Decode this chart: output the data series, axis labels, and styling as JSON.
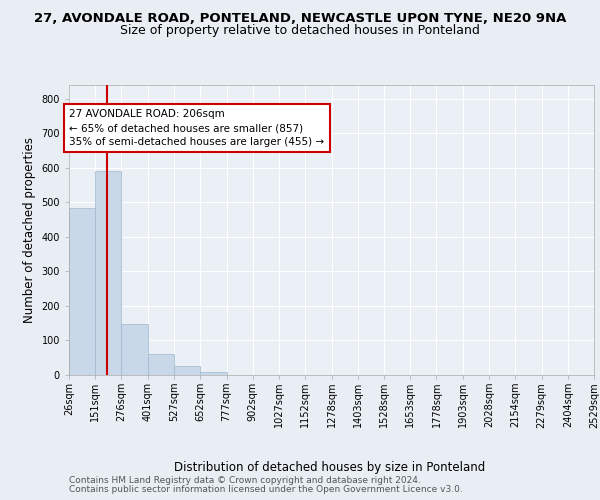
{
  "title_line1": "27, AVONDALE ROAD, PONTELAND, NEWCASTLE UPON TYNE, NE20 9NA",
  "title_line2": "Size of property relative to detached houses in Ponteland",
  "xlabel": "Distribution of detached houses by size in Ponteland",
  "ylabel": "Number of detached properties",
  "bin_edges": [
    26,
    151,
    276,
    401,
    527,
    652,
    777,
    902,
    1027,
    1152,
    1278,
    1403,
    1528,
    1653,
    1778,
    1903,
    2028,
    2154,
    2279,
    2404,
    2529
  ],
  "bar_heights": [
    483,
    591,
    148,
    61,
    25,
    8,
    0,
    0,
    0,
    0,
    0,
    0,
    0,
    0,
    0,
    0,
    0,
    0,
    0,
    0
  ],
  "bar_color": "#c8d8e8",
  "bar_edgecolor": "#a0b8cc",
  "vline_x": 206,
  "vline_color": "#cc0000",
  "annotation_text": "27 AVONDALE ROAD: 206sqm\n← 65% of detached houses are smaller (857)\n35% of semi-detached houses are larger (455) →",
  "annotation_box_color": "#cc0000",
  "annotation_box_fill": "#ffffff",
  "ylim": [
    0,
    840
  ],
  "yticks": [
    0,
    100,
    200,
    300,
    400,
    500,
    600,
    700,
    800
  ],
  "footer_line1": "Contains HM Land Registry data © Crown copyright and database right 2024.",
  "footer_line2": "Contains public sector information licensed under the Open Government Licence v3.0.",
  "background_color": "#e8eef4",
  "plot_bg_color": "#eaf0f6",
  "grid_color": "#ffffff",
  "title_fontsize": 9.5,
  "subtitle_fontsize": 9,
  "axis_label_fontsize": 8.5,
  "tick_fontsize": 7,
  "annotation_fontsize": 7.5,
  "footer_fontsize": 6.5
}
